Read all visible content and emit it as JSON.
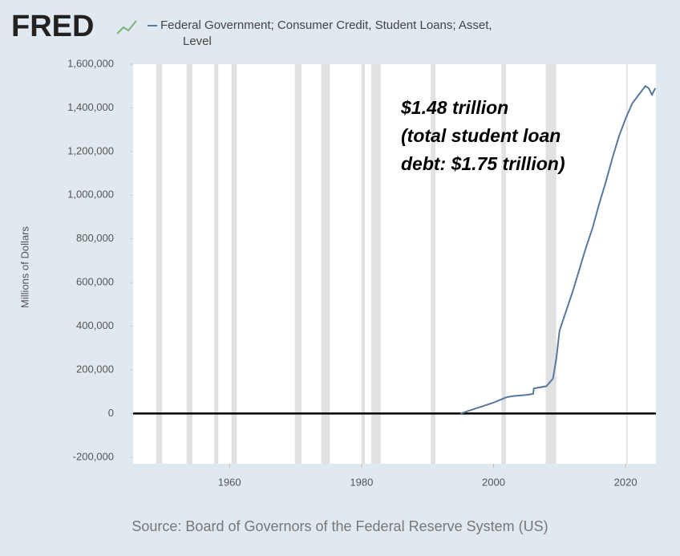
{
  "chart_data": {
    "type": "line",
    "brand": "FRED",
    "legend_label": "Federal Government; Consumer Credit, Student Loans; Asset, Level",
    "y_label": "Millions of Dollars",
    "annotation": [
      "$1.48 trillion",
      "(total student loan",
      "debt: $1.75 trillion)"
    ],
    "source": "Source: Board of Governors of the Federal Reserve System (US)",
    "x": [
      1995,
      1997,
      2000,
      2002,
      2003,
      2005,
      2006,
      2006.1,
      2008,
      2009,
      2009.5,
      2010,
      2011,
      2012,
      2013,
      2014,
      2015,
      2016,
      2017,
      2018,
      2019,
      2020,
      2021,
      2022,
      2023,
      2023.5,
      2024,
      2024.5
    ],
    "series": [
      {
        "name": "Federal Government; Consumer Credit, Student Loans; Asset, Level",
        "color": "#58799b",
        "values": [
          0,
          20000,
          50000,
          75000,
          80000,
          85000,
          90000,
          115000,
          125000,
          160000,
          250000,
          380000,
          470000,
          560000,
          660000,
          760000,
          850000,
          960000,
          1060000,
          1170000,
          1270000,
          1350000,
          1420000,
          1460000,
          1500000,
          1490000,
          1460000,
          1490000
        ]
      }
    ],
    "recessions": [
      [
        1948.9,
        1949.8
      ],
      [
        1953.5,
        1954.4
      ],
      [
        1957.7,
        1958.3
      ],
      [
        1960.3,
        1961.1
      ],
      [
        1969.9,
        1970.9
      ],
      [
        1973.9,
        1975.2
      ],
      [
        1980.0,
        1980.5
      ],
      [
        1981.5,
        1982.9
      ],
      [
        1990.5,
        1991.2
      ],
      [
        2001.2,
        2001.9
      ],
      [
        2007.9,
        2009.5
      ],
      [
        2020.1,
        2020.3
      ]
    ],
    "recession_color": "#e1e1e1",
    "zero_line": 0,
    "xlim": [
      1945.4,
      2024.6
    ],
    "xticks": [
      1960,
      1980,
      2000,
      2020
    ],
    "ylim": [
      -230000,
      1600000
    ],
    "yticks": [
      {
        "value": -200000,
        "label": "-200,000"
      },
      0,
      {
        "value": 200000,
        "label": "200,000"
      },
      {
        "value": 400000,
        "label": "400,000"
      },
      {
        "value": 600000,
        "label": "600,000"
      },
      {
        "value": 800000,
        "label": "800,000"
      },
      {
        "value": 1000000,
        "label": "1,000,000"
      },
      {
        "value": 1200000,
        "label": "1,200,000"
      },
      {
        "value": 1400000,
        "label": "1,400,000"
      },
      {
        "value": 1600000,
        "label": "1,600,000"
      }
    ]
  }
}
